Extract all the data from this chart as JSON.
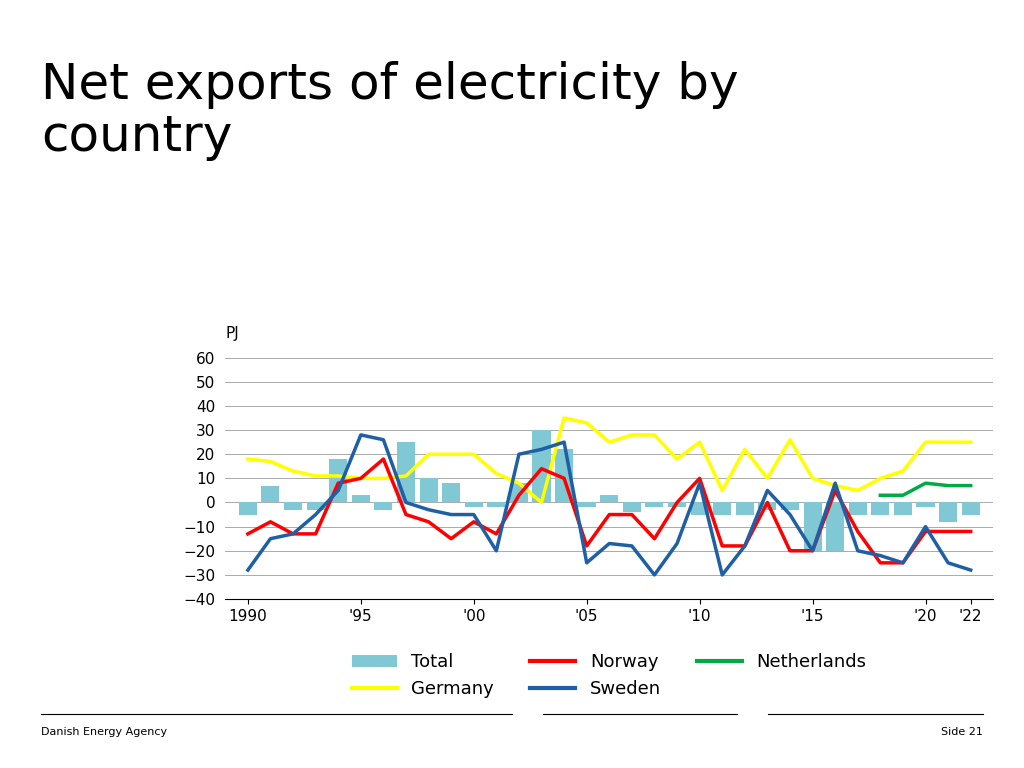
{
  "title": "Net exports of electricity by\ncountry",
  "ylabel": "PJ",
  "years": [
    1990,
    1991,
    1992,
    1993,
    1994,
    1995,
    1996,
    1997,
    1998,
    1999,
    2000,
    2001,
    2002,
    2003,
    2004,
    2005,
    2006,
    2007,
    2008,
    2009,
    2010,
    2011,
    2012,
    2013,
    2014,
    2015,
    2016,
    2017,
    2018,
    2019,
    2020,
    2021,
    2022
  ],
  "total": [
    -5,
    7,
    -3,
    -3,
    18,
    3,
    -3,
    25,
    10,
    8,
    -2,
    -2,
    8,
    30,
    22,
    -2,
    3,
    -4,
    -2,
    -2,
    -5,
    -5,
    -5,
    -3,
    -3,
    -20,
    -20,
    -5,
    -5,
    -5,
    -2,
    -8,
    -5
  ],
  "germany": [
    18,
    17,
    13,
    11,
    11,
    10,
    10,
    11,
    20,
    20,
    20,
    12,
    8,
    0,
    35,
    33,
    25,
    28,
    28,
    18,
    25,
    5,
    22,
    10,
    26,
    10,
    7,
    5,
    10,
    13,
    25,
    25,
    25
  ],
  "norway": [
    -13,
    -8,
    -13,
    -13,
    8,
    10,
    18,
    -5,
    -8,
    -15,
    -8,
    -13,
    3,
    14,
    10,
    -18,
    -5,
    -5,
    -15,
    0,
    10,
    -18,
    -18,
    0,
    -20,
    -20,
    5,
    -12,
    -25,
    -25,
    -12,
    -12,
    -12
  ],
  "sweden": [
    -28,
    -15,
    -13,
    -5,
    5,
    28,
    26,
    0,
    -3,
    -5,
    -5,
    -20,
    20,
    22,
    25,
    -25,
    -17,
    -18,
    -30,
    -17,
    8,
    -30,
    -18,
    5,
    -5,
    -20,
    8,
    -20,
    -22,
    -25,
    -10,
    -25,
    -28
  ],
  "netherlands": [
    null,
    null,
    null,
    null,
    null,
    null,
    null,
    null,
    null,
    null,
    null,
    null,
    null,
    null,
    null,
    null,
    null,
    null,
    null,
    null,
    null,
    null,
    null,
    null,
    null,
    null,
    null,
    null,
    3,
    3,
    8,
    7,
    7
  ],
  "total_color": "#7FC8D4",
  "germany_color": "#FFFF00",
  "norway_color": "#FF0000",
  "sweden_color": "#1F5FA6",
  "netherlands_color": "#00AA44",
  "ylim": [
    -40,
    65
  ],
  "yticks": [
    -40,
    -30,
    -20,
    -10,
    0,
    10,
    20,
    30,
    40,
    50,
    60
  ],
  "xtick_labels": [
    "1990",
    "'95",
    "'00",
    "'05",
    "'10",
    "'15",
    "'20",
    "'22"
  ],
  "xtick_positions": [
    1990,
    1995,
    2000,
    2005,
    2010,
    2015,
    2020,
    2022
  ],
  "footer_left": "Danish Energy Agency",
  "footer_right": "Side 21",
  "title_fontsize": 36,
  "axis_fontsize": 11,
  "legend_fontsize": 13
}
